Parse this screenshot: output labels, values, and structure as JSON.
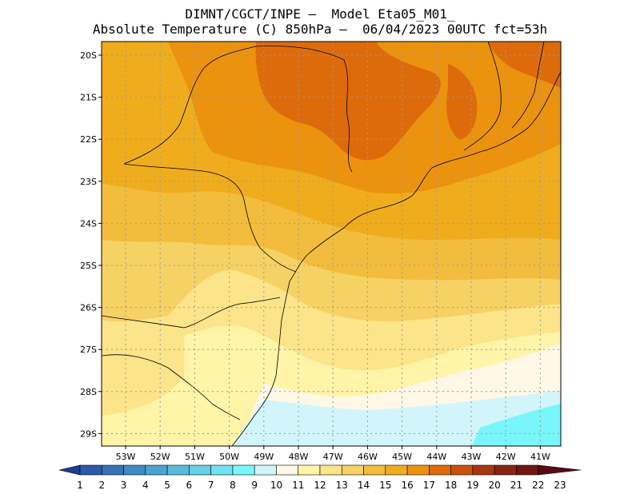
{
  "header": {
    "line1": "DIMNT/CGCT/INPE –  Model Eta05_M01_",
    "line2": "Absolute Temperature (C) 850hPa –  06/04/2023 00UTC fct=53h"
  },
  "axes": {
    "lat_labels": [
      "20S",
      "21S",
      "22S",
      "23S",
      "24S",
      "25S",
      "26S",
      "27S",
      "28S",
      "29S"
    ],
    "lon_labels": [
      "53W",
      "52W",
      "51W",
      "50W",
      "49W",
      "48W",
      "47W",
      "46W",
      "45W",
      "44W",
      "43W",
      "42W",
      "41W"
    ]
  },
  "colorbar": {
    "labels": [
      "1",
      "2",
      "3",
      "4",
      "5",
      "6",
      "7",
      "8",
      "9",
      "10",
      "11",
      "12",
      "13",
      "14",
      "15",
      "16",
      "17",
      "18",
      "19",
      "20",
      "21",
      "22",
      "23"
    ],
    "colors": [
      "#1f3d8c",
      "#2c59a8",
      "#3573b5",
      "#3f8cc4",
      "#4ca3cf",
      "#59badc",
      "#66d0e6",
      "#6fe3f1",
      "#78f6fb",
      "#d1f5fb",
      "#fff8e6",
      "#fff4a8",
      "#fbe489",
      "#f6d164",
      "#f2bd3d",
      "#efac1d",
      "#eb920e",
      "#dd6b0b",
      "#c9520c",
      "#a8360f",
      "#8a2512",
      "#711612",
      "#560a12"
    ]
  },
  "map": {
    "field_colors": {
      "cyan_light": "#d1f5fb",
      "cyan": "#78f6fb",
      "cream": "#fff8e6",
      "pale_yellow": "#fff4a8",
      "yellow": "#fbe489",
      "gold": "#f6d164",
      "light_orange": "#f2bd3d",
      "orange": "#efac1d",
      "deep_orange": "#eb920e",
      "dark_orange": "#dd6b0b"
    }
  }
}
